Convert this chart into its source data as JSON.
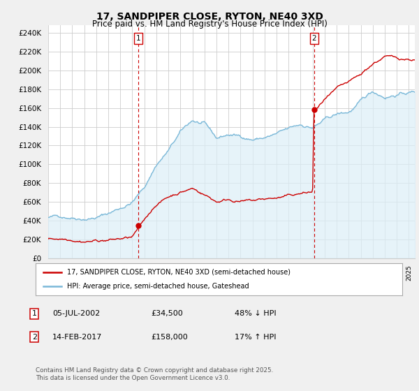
{
  "title": "17, SANDPIPER CLOSE, RYTON, NE40 3XD",
  "subtitle": "Price paid vs. HM Land Registry's House Price Index (HPI)",
  "ylabel_ticks": [
    "£0",
    "£20K",
    "£40K",
    "£60K",
    "£80K",
    "£100K",
    "£120K",
    "£140K",
    "£160K",
    "£180K",
    "£200K",
    "£220K",
    "£240K"
  ],
  "ytick_vals": [
    0,
    20000,
    40000,
    60000,
    80000,
    100000,
    120000,
    140000,
    160000,
    180000,
    200000,
    220000,
    240000
  ],
  "ylim": [
    0,
    248000
  ],
  "xlim_start": 1995.0,
  "xlim_end": 2025.5,
  "hpi_color": "#7ab8d8",
  "hpi_fill_color": "#dceef7",
  "price_color": "#cc0000",
  "marker1_date": 2002.51,
  "marker1_price": 34500,
  "marker2_date": 2017.12,
  "marker2_price": 158000,
  "legend_line1": "17, SANDPIPER CLOSE, RYTON, NE40 3XD (semi-detached house)",
  "legend_line2": "HPI: Average price, semi-detached house, Gateshead",
  "footer": "Contains HM Land Registry data © Crown copyright and database right 2025.\nThis data is licensed under the Open Government Licence v3.0.",
  "bg_color": "#f0f0f0",
  "plot_bg_color": "#ffffff",
  "grid_color": "#cccccc"
}
